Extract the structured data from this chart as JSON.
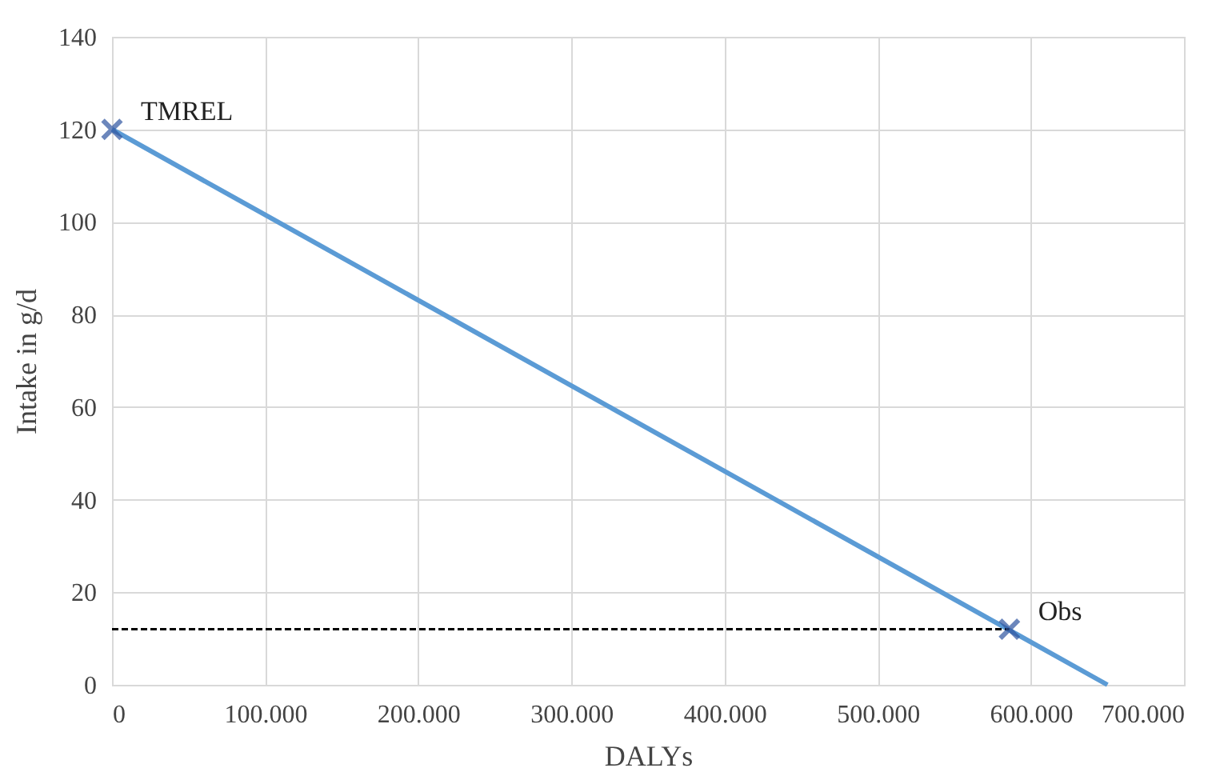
{
  "chart_data": {
    "type": "line",
    "xlabel": "DALYs",
    "ylabel": "Intake in g/d",
    "xlim": [
      0,
      700000
    ],
    "xticks": [
      0,
      {
        "value": 100000,
        "label": "100.000"
      },
      {
        "value": 200000,
        "label": "200.000"
      },
      {
        "value": 300000,
        "label": "300.000"
      },
      {
        "value": 400000,
        "label": "400.000"
      },
      {
        "value": 500000,
        "label": "500.000"
      },
      {
        "value": 600000,
        "label": "600.000"
      },
      {
        "value": 700000,
        "label": "700.000"
      }
    ],
    "ylim": [
      0,
      140
    ],
    "yticks": [
      0,
      20,
      40,
      60,
      80,
      100,
      120,
      140
    ],
    "grid": true,
    "legend": false,
    "series": [
      {
        "type": "line",
        "color": "#5b9bd5",
        "x": [
          0,
          650000
        ],
        "values": [
          120,
          0
        ],
        "marker": "none",
        "line_style": "solid"
      },
      {
        "type": "line",
        "color": "#000000",
        "x": [
          0,
          586000
        ],
        "values": [
          12,
          12
        ],
        "marker": "none",
        "line_style": "dashed"
      },
      {
        "type": "scatter",
        "color": "#2f55a0",
        "x": [
          0,
          586000
        ],
        "values": [
          120,
          12
        ],
        "marker": "cross"
      }
    ],
    "annotations": [
      {
        "text": "TMREL",
        "x": 0,
        "y": 120
      },
      {
        "text": "Obs",
        "x": 586000,
        "y": 12
      }
    ]
  }
}
